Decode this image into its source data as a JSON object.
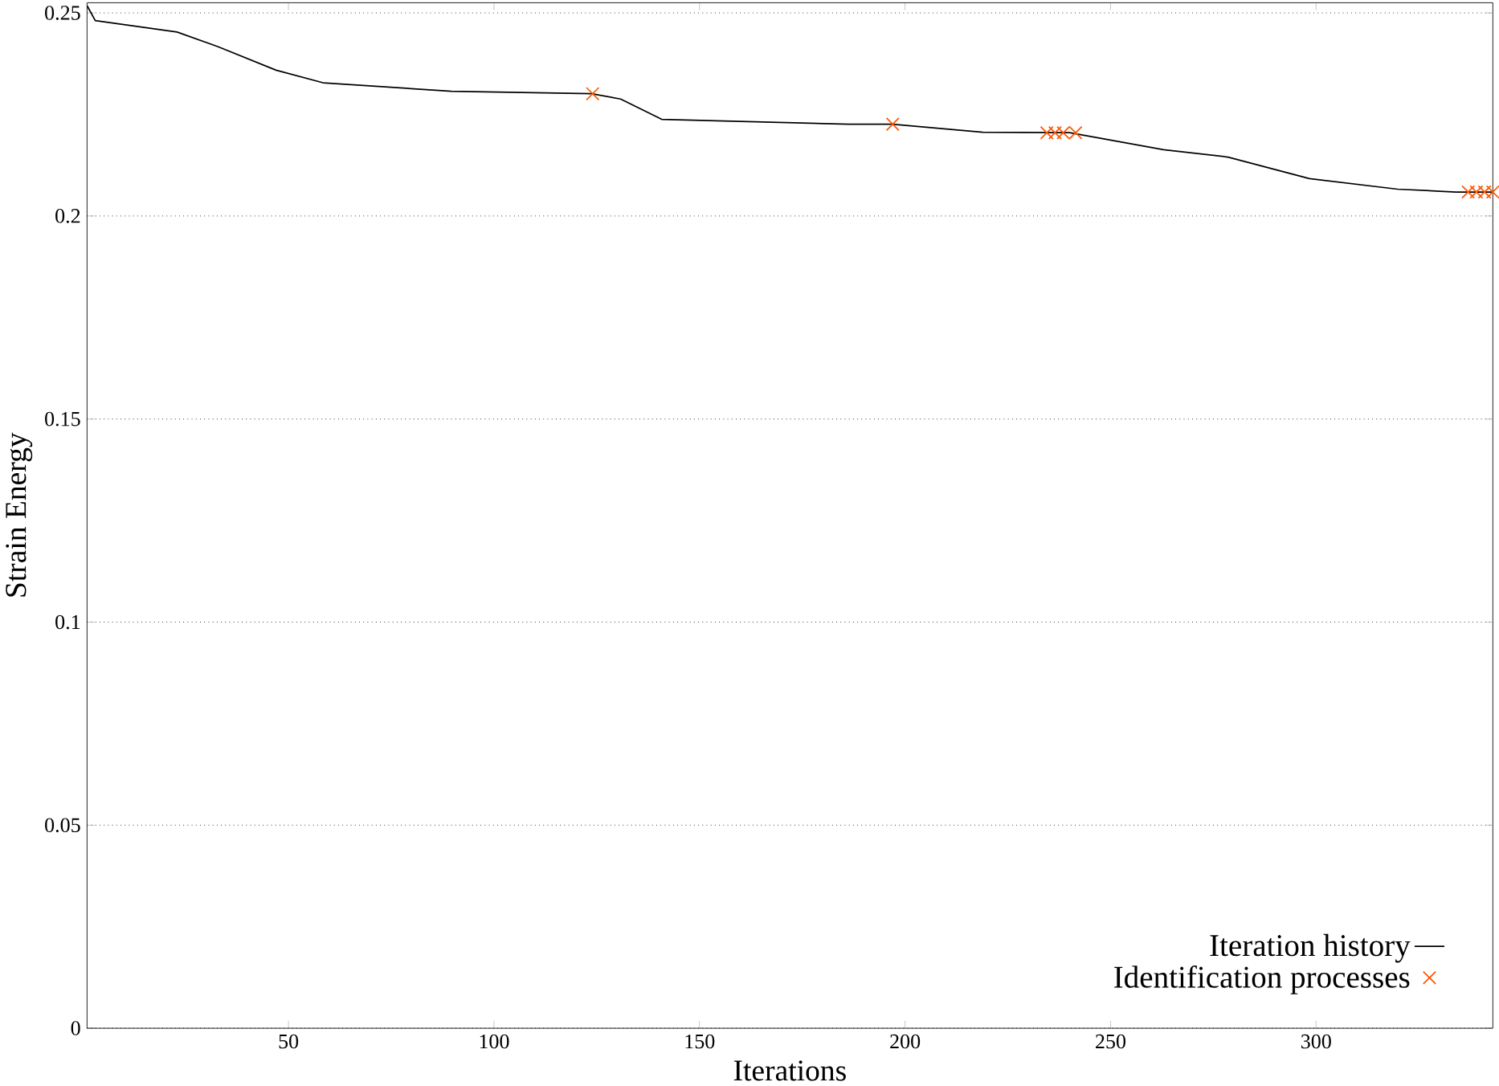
{
  "chart_data": {
    "type": "line",
    "xlabel": "Iterations",
    "ylabel": "Strain Energy",
    "xlim": [
      1,
      343
    ],
    "ylim": [
      0,
      0.2525
    ],
    "xticks": [
      50,
      100,
      150,
      200,
      250,
      300
    ],
    "yticks": [
      0,
      0.05,
      0.1,
      0.15,
      0.2,
      0.25
    ],
    "grid": "y",
    "legend": "bottom right",
    "series": [
      {
        "name": "Iteration history",
        "color": "#000000",
        "marker": "none",
        "line_style": "solid",
        "x": [
          1,
          3,
          22.9,
          32.8,
          47,
          58.4,
          89.6,
          123.7,
          130.8,
          140.8,
          186.2,
          196.9,
          218.9,
          240,
          262.9,
          278.6,
          298.4,
          319.8,
          334,
          343
        ],
        "values": [
          0.2518,
          0.2481,
          0.2453,
          0.2417,
          0.2359,
          0.2328,
          0.2307,
          0.2301,
          0.2288,
          0.2238,
          0.2226,
          0.2226,
          0.2206,
          0.2205,
          0.2163,
          0.2145,
          0.2092,
          0.2066,
          0.2059,
          0.2059
        ]
      },
      {
        "name": "Identification processes",
        "type": "scatter",
        "color": "#ff5500",
        "marker": "cross",
        "x": [
          124,
          197,
          234.5,
          236.5,
          238.5,
          241.5,
          337,
          339,
          341,
          343
        ],
        "values": [
          0.2301,
          0.2226,
          0.2205,
          0.2205,
          0.2205,
          0.2205,
          0.2059,
          0.2059,
          0.2059,
          0.2059
        ]
      }
    ]
  }
}
